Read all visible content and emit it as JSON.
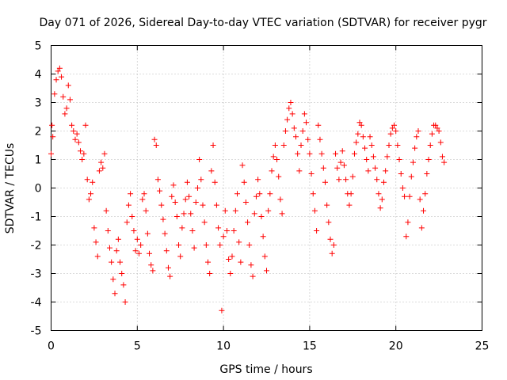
{
  "chart_data": {
    "type": "scatter",
    "title": "Day 071 of 2026, Sidereal Day-to-day VTEC variation (SDTVAR) for receiver pygr",
    "xlabel": "GPS time / hours",
    "ylabel": "SDTVAR / TECUs",
    "xlim": [
      0,
      25
    ],
    "ylim": [
      -5,
      5
    ],
    "xticks": [
      0,
      5,
      10,
      15,
      20,
      25
    ],
    "yticks": [
      -5,
      -4,
      -3,
      -2,
      -1,
      0,
      1,
      2,
      3,
      4,
      5
    ],
    "grid": true,
    "marker": "+",
    "color": "#ff0000",
    "series": [
      {
        "name": "pygr",
        "x": [
          0.0,
          0.05,
          0.1,
          0.2,
          0.3,
          0.4,
          0.5,
          0.6,
          0.7,
          0.8,
          0.9,
          1.0,
          1.1,
          1.2,
          1.3,
          1.4,
          1.5,
          1.6,
          1.7,
          1.8,
          1.9,
          2.0,
          2.1,
          2.2,
          2.3,
          2.4,
          2.5,
          2.6,
          2.7,
          2.8,
          2.9,
          3.0,
          3.1,
          3.2,
          3.3,
          3.4,
          3.5,
          3.6,
          3.7,
          3.8,
          3.9,
          4.0,
          4.1,
          4.2,
          4.3,
          4.4,
          4.5,
          4.6,
          4.7,
          4.8,
          4.9,
          5.0,
          5.1,
          5.2,
          5.3,
          5.4,
          5.5,
          5.6,
          5.7,
          5.8,
          5.9,
          6.0,
          6.1,
          6.2,
          6.3,
          6.4,
          6.5,
          6.6,
          6.7,
          6.8,
          6.9,
          7.0,
          7.1,
          7.2,
          7.3,
          7.4,
          7.5,
          7.6,
          7.7,
          7.8,
          7.9,
          8.0,
          8.1,
          8.2,
          8.3,
          8.4,
          8.5,
          8.6,
          8.7,
          8.8,
          8.9,
          9.0,
          9.1,
          9.2,
          9.3,
          9.4,
          9.5,
          9.6,
          9.7,
          9.8,
          9.9,
          10.0,
          10.1,
          10.2,
          10.3,
          10.4,
          10.5,
          10.6,
          10.7,
          10.8,
          10.9,
          11.0,
          11.1,
          11.2,
          11.3,
          11.4,
          11.5,
          11.6,
          11.7,
          11.8,
          11.9,
          12.0,
          12.1,
          12.2,
          12.3,
          12.4,
          12.5,
          12.6,
          12.7,
          12.8,
          12.9,
          13.0,
          13.1,
          13.2,
          13.3,
          13.4,
          13.5,
          13.6,
          13.7,
          13.8,
          13.9,
          14.0,
          14.1,
          14.2,
          14.3,
          14.4,
          14.5,
          14.6,
          14.7,
          14.8,
          14.9,
          15.0,
          15.1,
          15.2,
          15.3,
          15.4,
          15.5,
          15.6,
          15.7,
          15.8,
          15.9,
          16.0,
          16.1,
          16.2,
          16.3,
          16.4,
          16.5,
          16.6,
          16.7,
          16.8,
          16.9,
          17.0,
          17.1,
          17.2,
          17.3,
          17.4,
          17.5,
          17.6,
          17.7,
          17.8,
          17.9,
          18.0,
          18.1,
          18.2,
          18.3,
          18.4,
          18.5,
          18.6,
          18.7,
          18.8,
          18.9,
          19.0,
          19.1,
          19.2,
          19.3,
          19.4,
          19.5,
          19.6,
          19.7,
          19.8,
          19.9,
          20.0,
          20.1,
          20.2,
          20.3,
          20.4,
          20.5,
          20.6,
          20.7,
          20.8,
          20.9,
          21.0,
          21.1,
          21.2,
          21.3,
          21.4,
          21.5,
          21.6,
          21.7,
          21.8,
          21.9,
          22.0,
          22.1,
          22.2,
          22.3,
          22.4,
          22.5,
          22.6,
          22.7,
          22.8
        ],
        "y": [
          1.2,
          2.2,
          1.8,
          3.3,
          3.8,
          4.1,
          4.2,
          3.9,
          3.2,
          2.6,
          2.8,
          3.6,
          3.1,
          2.2,
          2.0,
          1.7,
          1.9,
          1.6,
          1.3,
          1.0,
          1.2,
          2.2,
          0.3,
          -0.4,
          -0.2,
          0.2,
          -1.4,
          -1.9,
          -2.4,
          0.6,
          0.9,
          0.7,
          1.2,
          -0.8,
          -1.5,
          -2.1,
          -2.6,
          -3.2,
          -3.7,
          -2.2,
          -1.8,
          -2.6,
          -3.0,
          -3.4,
          -4.0,
          -1.2,
          -0.6,
          -0.2,
          -1.0,
          -1.5,
          -2.2,
          -1.8,
          -2.3,
          -2.0,
          -0.4,
          -0.2,
          -0.8,
          -1.6,
          -2.3,
          -2.7,
          -2.9,
          1.7,
          1.5,
          0.3,
          -0.1,
          -0.6,
          -1.1,
          -1.6,
          -2.2,
          -2.8,
          -3.1,
          -0.3,
          0.1,
          -0.5,
          -1.0,
          -2.0,
          -2.4,
          -1.4,
          -0.9,
          -0.4,
          0.2,
          -0.3,
          -0.9,
          -1.5,
          -2.1,
          -0.5,
          0.0,
          1.0,
          0.3,
          -0.6,
          -1.2,
          -2.0,
          -2.6,
          -3.0,
          0.6,
          1.5,
          0.2,
          -0.6,
          -1.4,
          -2.0,
          -4.3,
          -1.7,
          -0.8,
          -1.5,
          -2.5,
          -3.0,
          -2.4,
          -1.5,
          -0.8,
          -0.2,
          -1.9,
          -2.6,
          0.8,
          0.2,
          -0.5,
          -1.2,
          -2.0,
          -2.7,
          -3.1,
          -0.9,
          -0.3,
          0.3,
          -0.2,
          -1.0,
          -1.7,
          -2.4,
          -2.9,
          -0.8,
          -0.2,
          0.6,
          1.1,
          1.5,
          1.0,
          0.4,
          -0.4,
          -0.9,
          1.5,
          2.0,
          2.4,
          2.8,
          3.0,
          2.6,
          2.1,
          1.8,
          1.2,
          0.6,
          1.5,
          2.0,
          2.6,
          2.3,
          1.7,
          1.2,
          0.5,
          -0.2,
          -0.8,
          -1.5,
          2.2,
          1.7,
          1.2,
          0.7,
          0.2,
          -0.6,
          -1.2,
          -1.8,
          -2.3,
          -2.0,
          1.2,
          0.7,
          0.3,
          0.9,
          1.3,
          0.8,
          0.3,
          -0.2,
          -0.6,
          -0.2,
          0.4,
          1.2,
          1.6,
          1.9,
          2.3,
          2.2,
          1.8,
          1.4,
          1.0,
          0.6,
          1.8,
          1.5,
          1.1,
          0.7,
          0.3,
          -0.2,
          -0.7,
          -0.4,
          0.2,
          0.6,
          1.1,
          1.5,
          1.9,
          2.1,
          2.2,
          2.0,
          1.5,
          1.0,
          0.5,
          0.0,
          -0.3,
          -1.7,
          -1.2,
          -0.3,
          0.4,
          0.9,
          1.4,
          1.8,
          2.0,
          -0.4,
          -1.4,
          -0.8,
          -0.2,
          0.5,
          1.0,
          1.5,
          1.9,
          2.2,
          2.2,
          2.1,
          2.0,
          1.6,
          1.1,
          0.9
        ]
      }
    ]
  }
}
